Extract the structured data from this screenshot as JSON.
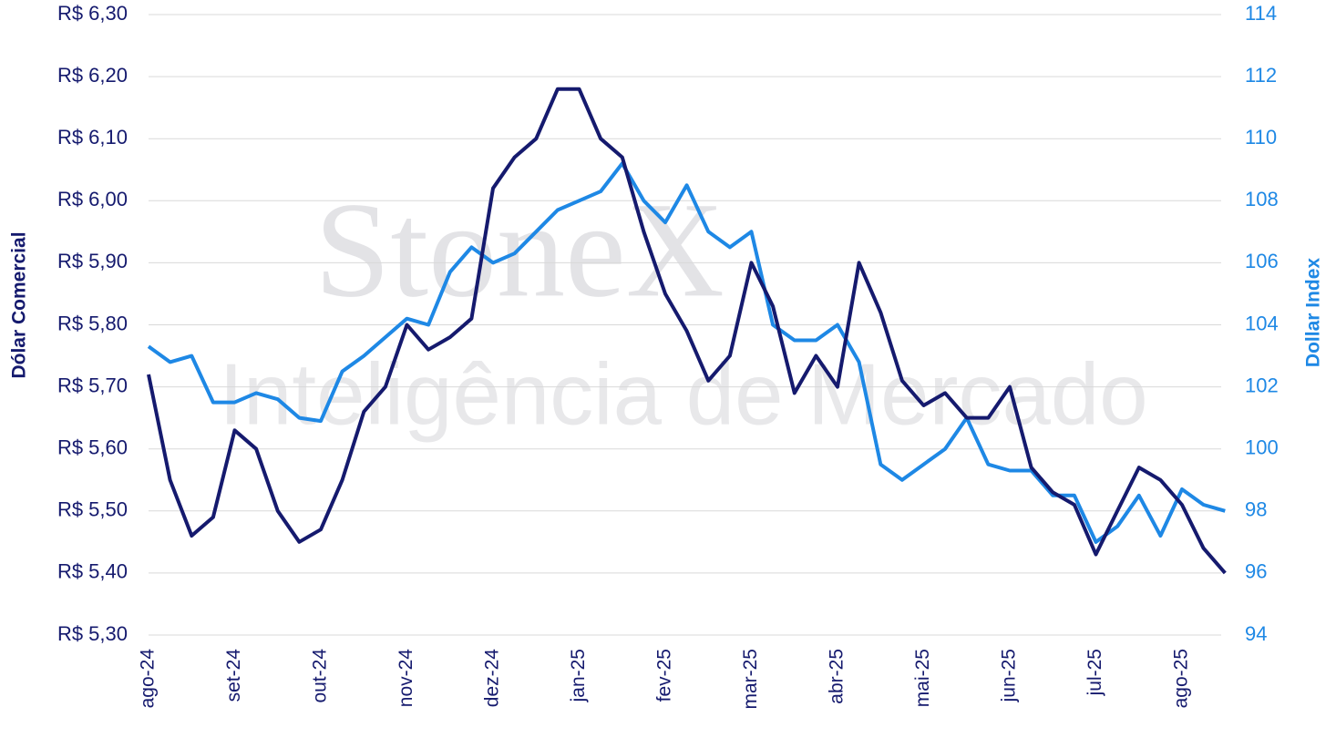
{
  "chart_data": {
    "type": "line",
    "watermark": "StoneX",
    "watermark_sub": "Inteligência de Mercado",
    "ylabel": "Dólar Comercial",
    "y2label": "Dollar Index",
    "categories": [
      "ago-24",
      null,
      null,
      null,
      "set-24",
      null,
      null,
      null,
      "out-24",
      null,
      null,
      null,
      "nov-24",
      null,
      null,
      null,
      "dez-24",
      null,
      null,
      null,
      "jan-25",
      null,
      null,
      null,
      "fev-25",
      null,
      null,
      null,
      "mar-25",
      null,
      null,
      null,
      "abr-25",
      null,
      null,
      null,
      "mai-25",
      null,
      null,
      null,
      "jun-25",
      null,
      null,
      null,
      "jul-25",
      null,
      null,
      null,
      "ago-25",
      null,
      null
    ],
    "ylim": [
      5.3,
      6.3
    ],
    "yticks": [
      {
        "value": 5.3,
        "label": "R$ 5,30"
      },
      {
        "value": 5.4,
        "label": "R$ 5,40"
      },
      {
        "value": 5.5,
        "label": "R$ 5,50"
      },
      {
        "value": 5.6,
        "label": "R$ 5,60"
      },
      {
        "value": 5.7,
        "label": "R$ 5,70"
      },
      {
        "value": 5.8,
        "label": "R$ 5,80"
      },
      {
        "value": 5.9,
        "label": "R$ 5,90"
      },
      {
        "value": 6.0,
        "label": "R$ 6,00"
      },
      {
        "value": 6.1,
        "label": "R$ 6,10"
      },
      {
        "value": 6.2,
        "label": "R$ 6,20"
      },
      {
        "value": 6.3,
        "label": "R$ 6,30"
      }
    ],
    "y2lim": [
      94,
      114
    ],
    "y2ticks": [
      94,
      96,
      98,
      100,
      102,
      104,
      106,
      108,
      110,
      112,
      114
    ],
    "grid": true,
    "series": [
      {
        "name": "Dólar Comercial",
        "color": "#151a6e",
        "axis": "y",
        "values": [
          5.72,
          5.55,
          5.46,
          5.49,
          5.63,
          5.6,
          5.5,
          5.45,
          5.47,
          5.55,
          5.66,
          5.7,
          5.8,
          5.76,
          5.78,
          5.81,
          6.02,
          6.07,
          6.1,
          6.18,
          6.18,
          6.1,
          6.07,
          5.95,
          5.85,
          5.79,
          5.71,
          5.75,
          5.9,
          5.83,
          5.69,
          5.75,
          5.7,
          5.9,
          5.82,
          5.71,
          5.67,
          5.69,
          5.65,
          5.65,
          5.7,
          5.57,
          5.53,
          5.51,
          5.43,
          5.5,
          5.57,
          5.55,
          5.51,
          5.44,
          5.4
        ]
      },
      {
        "name": "Dollar Index",
        "color": "#1e88e5",
        "axis": "y2",
        "values": [
          103.3,
          102.8,
          103.0,
          101.5,
          101.5,
          101.8,
          101.6,
          101.0,
          100.9,
          102.5,
          103.0,
          103.6,
          104.2,
          104.0,
          105.7,
          106.5,
          106.0,
          106.3,
          107.0,
          107.7,
          108.0,
          108.3,
          109.2,
          108.0,
          107.3,
          108.5,
          107.0,
          106.5,
          107.0,
          104.0,
          103.5,
          103.5,
          104.0,
          102.8,
          99.5,
          99.0,
          99.5,
          100.0,
          101.0,
          99.5,
          99.3,
          99.3,
          98.5,
          98.5,
          97.0,
          97.5,
          98.5,
          97.2,
          98.7,
          98.2,
          98.0
        ]
      }
    ]
  }
}
